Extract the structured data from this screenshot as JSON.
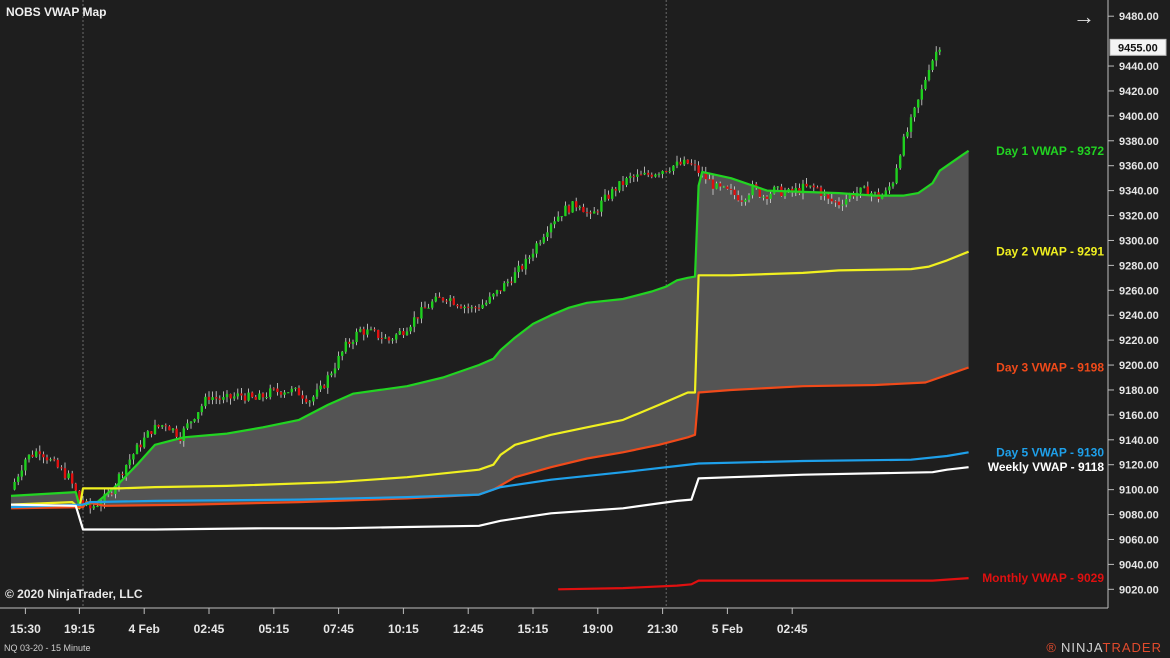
{
  "window": {
    "title": "NOBS VWAP Map"
  },
  "footer": {
    "instrument": "NQ 03-20 - 15 Minute",
    "copyright": "© 2020 NinjaTrader, LLC",
    "brand_a": "NINJA",
    "brand_b": "TRADER",
    "brand_mark": "®"
  },
  "toolbar": {
    "nav_arrow": "→"
  },
  "colors": {
    "background": "#1e1e1e",
    "up_candle": "#1fcf1f",
    "down_candle": "#e01010",
    "fill": "#545454"
  },
  "chart_data": {
    "type": "line",
    "title": "NOBS VWAP Map",
    "ylim": [
      9005,
      9493
    ],
    "y_ticks": [
      9480,
      9440,
      9420,
      9400,
      9380,
      9360,
      9340,
      9320,
      9300,
      9280,
      9260,
      9240,
      9220,
      9200,
      9180,
      9160,
      9140,
      9120,
      9100,
      9080,
      9060,
      9040,
      9020
    ],
    "last_price": "9455.00",
    "x_tick_labels": [
      "15:30",
      "19:15",
      "4 Feb",
      "02:45",
      "05:15",
      "07:45",
      "10:15",
      "12:45",
      "15:15",
      "19:00",
      "21:30",
      "5 Feb",
      "02:45"
    ],
    "x_tick_index": [
      4,
      19,
      37,
      55,
      73,
      91,
      109,
      127,
      145,
      163,
      181,
      199,
      217
    ],
    "session_breaks": [
      20,
      182
    ],
    "bar_count": 258,
    "series": [
      {
        "name": "Day 1 VWAP",
        "label": "Day 1 VWAP - 9372",
        "color": "#22d422",
        "points": [
          [
            0,
            9095
          ],
          [
            18,
            9098
          ],
          [
            19,
            9087
          ],
          [
            24,
            9090
          ],
          [
            30,
            9105
          ],
          [
            35,
            9120
          ],
          [
            40,
            9136
          ],
          [
            48,
            9142
          ],
          [
            60,
            9145
          ],
          [
            70,
            9150
          ],
          [
            80,
            9156
          ],
          [
            88,
            9168
          ],
          [
            95,
            9177
          ],
          [
            110,
            9183
          ],
          [
            120,
            9190
          ],
          [
            130,
            9200
          ],
          [
            134,
            9205
          ],
          [
            136,
            9212
          ],
          [
            140,
            9222
          ],
          [
            145,
            9233
          ],
          [
            150,
            9240
          ],
          [
            155,
            9246
          ],
          [
            160,
            9250
          ],
          [
            170,
            9253
          ],
          [
            178,
            9259
          ],
          [
            182,
            9263
          ],
          [
            185,
            9268
          ],
          [
            188,
            9270
          ],
          [
            190,
            9271
          ],
          [
            191,
            9344
          ],
          [
            192,
            9355
          ],
          [
            200,
            9350
          ],
          [
            210,
            9340
          ],
          [
            230,
            9338
          ],
          [
            240,
            9336
          ],
          [
            248,
            9336
          ],
          [
            252,
            9338
          ],
          [
            256,
            9346
          ],
          [
            258,
            9356
          ],
          [
            264,
            9368
          ],
          [
            266,
            9372
          ]
        ]
      },
      {
        "name": "Day 2 VWAP",
        "label": "Day 2 VWAP - 9291",
        "color": "#f0f020",
        "points": [
          [
            0,
            9088
          ],
          [
            17,
            9090
          ],
          [
            19,
            9085
          ],
          [
            20,
            9101
          ],
          [
            30,
            9101
          ],
          [
            40,
            9102
          ],
          [
            60,
            9103
          ],
          [
            90,
            9106
          ],
          [
            110,
            9110
          ],
          [
            130,
            9116
          ],
          [
            134,
            9120
          ],
          [
            136,
            9128
          ],
          [
            140,
            9136
          ],
          [
            150,
            9144
          ],
          [
            160,
            9150
          ],
          [
            170,
            9156
          ],
          [
            180,
            9168
          ],
          [
            188,
            9178
          ],
          [
            190,
            9178
          ],
          [
            191,
            9272
          ],
          [
            200,
            9272
          ],
          [
            220,
            9274
          ],
          [
            230,
            9276
          ],
          [
            250,
            9277
          ],
          [
            255,
            9279
          ],
          [
            260,
            9284
          ],
          [
            266,
            9291
          ]
        ]
      },
      {
        "name": "Day 3 VWAP",
        "label": "Day 3 VWAP - 9198",
        "color": "#f04a1a",
        "points": [
          [
            0,
            9085
          ],
          [
            20,
            9086
          ],
          [
            21,
            9090
          ],
          [
            26,
            9087
          ],
          [
            50,
            9088
          ],
          [
            80,
            9090
          ],
          [
            110,
            9093
          ],
          [
            130,
            9096
          ],
          [
            134,
            9100
          ],
          [
            140,
            9110
          ],
          [
            150,
            9118
          ],
          [
            160,
            9125
          ],
          [
            170,
            9130
          ],
          [
            180,
            9136
          ],
          [
            188,
            9142
          ],
          [
            190,
            9144
          ],
          [
            191,
            9178
          ],
          [
            200,
            9180
          ],
          [
            220,
            9183
          ],
          [
            240,
            9184
          ],
          [
            254,
            9186
          ],
          [
            260,
            9192
          ],
          [
            266,
            9198
          ]
        ]
      },
      {
        "name": "Day 5 VWAP",
        "label": "Day 5 VWAP - 9130",
        "color": "#1ea0ea",
        "points": [
          [
            0,
            9086
          ],
          [
            20,
            9088
          ],
          [
            22,
            9090
          ],
          [
            40,
            9091
          ],
          [
            80,
            9092
          ],
          [
            110,
            9094
          ],
          [
            130,
            9096
          ],
          [
            136,
            9102
          ],
          [
            150,
            9108
          ],
          [
            170,
            9114
          ],
          [
            185,
            9119
          ],
          [
            191,
            9121
          ],
          [
            220,
            9123
          ],
          [
            250,
            9124
          ],
          [
            260,
            9127
          ],
          [
            266,
            9130
          ]
        ]
      },
      {
        "name": "Weekly VWAP",
        "label": "Weekly VWAP - 9118",
        "color": "#ffffff",
        "points": [
          [
            0,
            9088
          ],
          [
            18,
            9087
          ],
          [
            20,
            9068
          ],
          [
            40,
            9068
          ],
          [
            70,
            9069
          ],
          [
            90,
            9069
          ],
          [
            110,
            9070
          ],
          [
            130,
            9071
          ],
          [
            136,
            9075
          ],
          [
            150,
            9081
          ],
          [
            170,
            9085
          ],
          [
            185,
            9091
          ],
          [
            189,
            9092
          ],
          [
            191,
            9109
          ],
          [
            200,
            9110
          ],
          [
            220,
            9112
          ],
          [
            256,
            9114
          ],
          [
            260,
            9116
          ],
          [
            266,
            9118
          ]
        ]
      },
      {
        "name": "Monthly VWAP",
        "label": "Monthly VWAP - 9029",
        "color": "#e01010",
        "points": [
          [
            152,
            9020
          ],
          [
            170,
            9021
          ],
          [
            185,
            9023
          ],
          [
            189,
            9024
          ],
          [
            191,
            9027
          ],
          [
            230,
            9027
          ],
          [
            256,
            9027
          ],
          [
            266,
            9029
          ]
        ]
      }
    ],
    "price_path": [
      [
        0,
        9100
      ],
      [
        4,
        9125
      ],
      [
        8,
        9132
      ],
      [
        12,
        9120
      ],
      [
        16,
        9110
      ],
      [
        19,
        9092
      ],
      [
        22,
        9085
      ],
      [
        27,
        9095
      ],
      [
        31,
        9116
      ],
      [
        35,
        9133
      ],
      [
        39,
        9148
      ],
      [
        43,
        9153
      ],
      [
        47,
        9143
      ],
      [
        51,
        9160
      ],
      [
        55,
        9175
      ],
      [
        59,
        9172
      ],
      [
        64,
        9176
      ],
      [
        68,
        9172
      ],
      [
        72,
        9178
      ],
      [
        76,
        9180
      ],
      [
        80,
        9178
      ],
      [
        83,
        9172
      ],
      [
        86,
        9180
      ],
      [
        89,
        9195
      ],
      [
        93,
        9215
      ],
      [
        97,
        9228
      ],
      [
        101,
        9225
      ],
      [
        105,
        9220
      ],
      [
        109,
        9228
      ],
      [
        113,
        9240
      ],
      [
        117,
        9250
      ],
      [
        121,
        9255
      ],
      [
        124,
        9250
      ],
      [
        128,
        9245
      ],
      [
        132,
        9250
      ],
      [
        135,
        9258
      ],
      [
        139,
        9270
      ],
      [
        143,
        9282
      ],
      [
        146,
        9297
      ],
      [
        150,
        9315
      ],
      [
        154,
        9325
      ],
      [
        158,
        9330
      ],
      [
        161,
        9318
      ],
      [
        164,
        9330
      ],
      [
        168,
        9342
      ],
      [
        172,
        9350
      ],
      [
        176,
        9352
      ],
      [
        180,
        9356
      ],
      [
        184,
        9360
      ],
      [
        188,
        9362
      ],
      [
        190,
        9358
      ],
      [
        193,
        9350
      ],
      [
        196,
        9342
      ],
      [
        200,
        9338
      ],
      [
        203,
        9334
      ],
      [
        206,
        9342
      ],
      [
        209,
        9336
      ],
      [
        212,
        9340
      ],
      [
        216,
        9338
      ],
      [
        220,
        9342
      ],
      [
        224,
        9342
      ],
      [
        227,
        9332
      ],
      [
        230,
        9330
      ],
      [
        234,
        9338
      ],
      [
        238,
        9340
      ],
      [
        241,
        9335
      ],
      [
        243,
        9338
      ],
      [
        245,
        9348
      ],
      [
        247,
        9372
      ],
      [
        250,
        9395
      ],
      [
        253,
        9420
      ],
      [
        255,
        9440
      ],
      [
        258,
        9457
      ]
    ]
  }
}
